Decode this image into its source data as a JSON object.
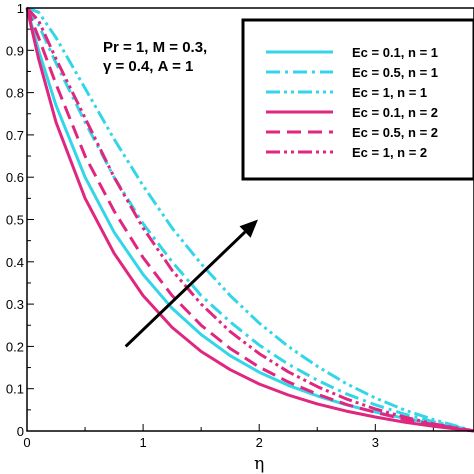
{
  "chart_data": {
    "type": "line",
    "title": "",
    "xlabel": "η",
    "ylabel": "",
    "xlim": [
      0,
      3.85
    ],
    "ylim": [
      0,
      1
    ],
    "x_ticks": [
      "0",
      "1",
      "2",
      "3"
    ],
    "y_ticks": [
      "0",
      "0.1",
      "0.2",
      "0.3",
      "0.4",
      "0.5",
      "0.6",
      "0.7",
      "0.8",
      "0.9",
      "1"
    ],
    "annotation_lines": [
      "Pr = 1, M = 0.3,",
      "γ = 0.4, A = 1"
    ],
    "arrow": {
      "from": [
        0.85,
        0.2
      ],
      "to": [
        1.99,
        0.5
      ]
    },
    "legend_position": "top-right",
    "colors": {
      "cyan": "#33d6e8",
      "magenta": "#e0267e"
    },
    "series": [
      {
        "name": "Ec = 0.1, n = 1",
        "color": "#33d6e8",
        "dash": "solid",
        "x": [
          0,
          0.1,
          0.25,
          0.5,
          0.75,
          1,
          1.25,
          1.5,
          1.75,
          2,
          2.25,
          2.5,
          2.75,
          3,
          3.25,
          3.5,
          3.85
        ],
        "y": [
          1,
          0.9,
          0.77,
          0.6,
          0.47,
          0.37,
          0.29,
          0.228,
          0.178,
          0.139,
          0.108,
          0.083,
          0.062,
          0.045,
          0.03,
          0.017,
          0
        ]
      },
      {
        "name": "Ec = 0.5, n = 1",
        "color": "#33d6e8",
        "dash": "dashdot",
        "x": [
          0,
          0.1,
          0.25,
          0.5,
          0.75,
          1,
          1.25,
          1.5,
          1.75,
          2,
          2.25,
          2.5,
          2.75,
          3,
          3.25,
          3.5,
          3.85
        ],
        "y": [
          1,
          0.96,
          0.87,
          0.73,
          0.6,
          0.49,
          0.4,
          0.32,
          0.258,
          0.203,
          0.158,
          0.12,
          0.088,
          0.062,
          0.04,
          0.022,
          0
        ]
      },
      {
        "name": "Ec = 1, n = 1",
        "color": "#33d6e8",
        "dash": "dashdotdot",
        "x": [
          0,
          0.1,
          0.25,
          0.5,
          0.75,
          1,
          1.25,
          1.5,
          1.75,
          2,
          2.25,
          2.5,
          2.75,
          3,
          3.25,
          3.5,
          3.85
        ],
        "y": [
          1,
          0.99,
          0.93,
          0.81,
          0.69,
          0.58,
          0.48,
          0.395,
          0.32,
          0.255,
          0.2,
          0.153,
          0.112,
          0.078,
          0.05,
          0.027,
          0
        ]
      },
      {
        "name": "Ec = 0.1, n = 2",
        "color": "#e0267e",
        "dash": "solid",
        "x": [
          0,
          0.1,
          0.25,
          0.5,
          0.75,
          1,
          1.25,
          1.5,
          1.75,
          2,
          2.25,
          2.5,
          2.75,
          3,
          3.25,
          3.5,
          3.85
        ],
        "y": [
          1,
          0.88,
          0.73,
          0.55,
          0.42,
          0.32,
          0.245,
          0.188,
          0.145,
          0.111,
          0.085,
          0.064,
          0.047,
          0.033,
          0.021,
          0.011,
          0
        ]
      },
      {
        "name": "Ec = 0.5, n = 2",
        "color": "#e0267e",
        "dash": "dashed",
        "x": [
          0,
          0.1,
          0.25,
          0.5,
          0.75,
          1,
          1.25,
          1.5,
          1.75,
          2,
          2.25,
          2.5,
          2.75,
          3,
          3.25,
          3.5,
          3.85
        ],
        "y": [
          1,
          0.93,
          0.82,
          0.65,
          0.52,
          0.41,
          0.32,
          0.25,
          0.195,
          0.151,
          0.116,
          0.087,
          0.063,
          0.044,
          0.028,
          0.015,
          0
        ]
      },
      {
        "name": "Ec = 1, n = 2",
        "color": "#e0267e",
        "dash": "dashdotdot",
        "x": [
          0,
          0.1,
          0.25,
          0.5,
          0.75,
          1,
          1.25,
          1.5,
          1.75,
          2,
          2.25,
          2.5,
          2.75,
          3,
          3.25,
          3.5,
          3.85
        ],
        "y": [
          1,
          0.97,
          0.88,
          0.74,
          0.6,
          0.48,
          0.38,
          0.3,
          0.235,
          0.183,
          0.14,
          0.105,
          0.076,
          0.052,
          0.033,
          0.017,
          0
        ]
      }
    ]
  }
}
